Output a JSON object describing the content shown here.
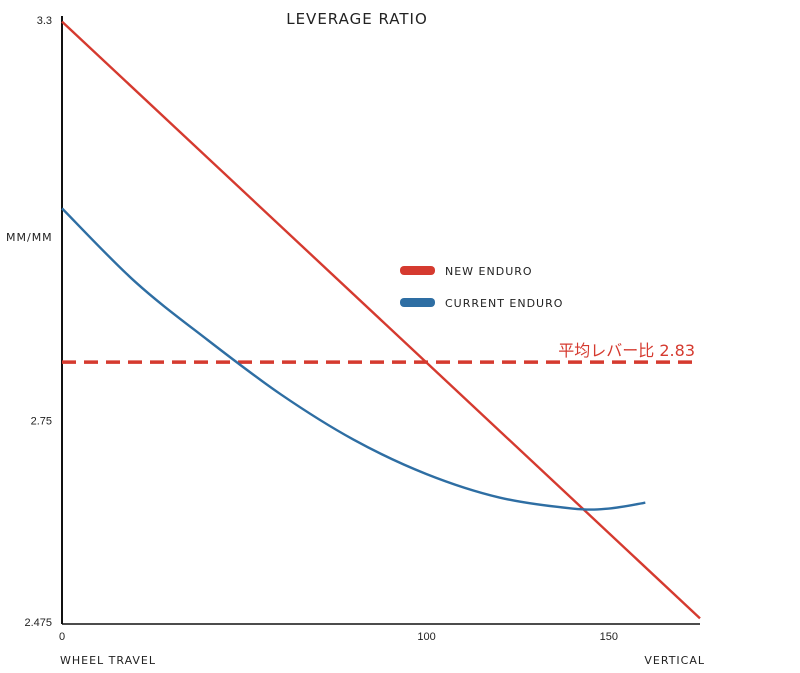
{
  "chart_data": {
    "type": "line",
    "title": "LEVERAGE RATIO",
    "ylabel": "MM/MM",
    "xlabel": "WHEEL TRAVEL",
    "xlabel_right": "VERTICAL",
    "x_ticks": [
      0,
      100,
      150
    ],
    "y_ticks": [
      2.475,
      2.75,
      3.3
    ],
    "xlim": [
      0,
      175
    ],
    "ylim": [
      2.475,
      3.3
    ],
    "legend_position": "right-middle",
    "series": [
      {
        "name": "NEW ENDURO",
        "color": "#d53a2f",
        "x": [
          0,
          175
        ],
        "y": [
          3.295,
          2.48
        ]
      },
      {
        "name": "CURRENT ENDURO",
        "color": "#2e6ea3",
        "x": [
          0,
          20,
          40,
          60,
          80,
          100,
          120,
          140,
          150,
          160
        ],
        "y": [
          3.04,
          2.94,
          2.86,
          2.786,
          2.724,
          2.677,
          2.645,
          2.63,
          2.63,
          2.638
        ]
      }
    ],
    "reference_line": {
      "label": "平均レバー比 2.83",
      "y": 2.83,
      "color": "#d53a2f",
      "style": "dashed"
    }
  }
}
